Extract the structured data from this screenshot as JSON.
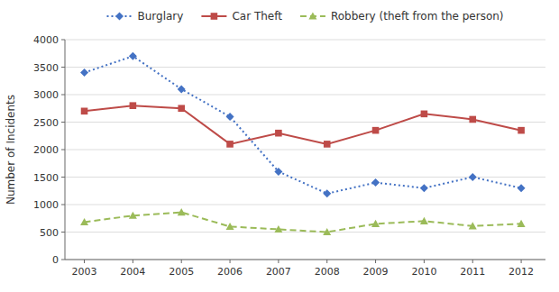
{
  "chart_data": {
    "type": "line",
    "y_label": "Number of Incidents",
    "x": [
      2003,
      2004,
      2005,
      2006,
      2007,
      2008,
      2009,
      2010,
      2011,
      2012
    ],
    "xlim": [
      2002.6,
      2012.5
    ],
    "xticks": [
      2003,
      2004,
      2005,
      2006,
      2007,
      2008,
      2009,
      2010,
      2011,
      2012
    ],
    "ylim": [
      0,
      4000
    ],
    "yticks": [
      0,
      500,
      1000,
      1500,
      2000,
      2500,
      3000,
      3500,
      4000
    ],
    "grid": true,
    "legend": "top",
    "series": [
      {
        "name": "Burglary",
        "color": "#4472C4",
        "marker": "diamond",
        "line_style": "dotted",
        "values": [
          3400,
          3700,
          3100,
          2600,
          1600,
          1200,
          1400,
          1300,
          1500,
          1300
        ]
      },
      {
        "name": "Car Theft",
        "color": "#BE4B48",
        "marker": "square",
        "line_style": "solid",
        "values": [
          2700,
          2800,
          2750,
          2100,
          2300,
          2100,
          2350,
          2650,
          2550,
          2350
        ]
      },
      {
        "name": "Robbery (theft from the person)",
        "color": "#9BBB59",
        "marker": "triangle",
        "line_style": "dashed",
        "values": [
          680,
          800,
          860,
          600,
          550,
          500,
          650,
          700,
          610,
          650
        ]
      }
    ]
  }
}
